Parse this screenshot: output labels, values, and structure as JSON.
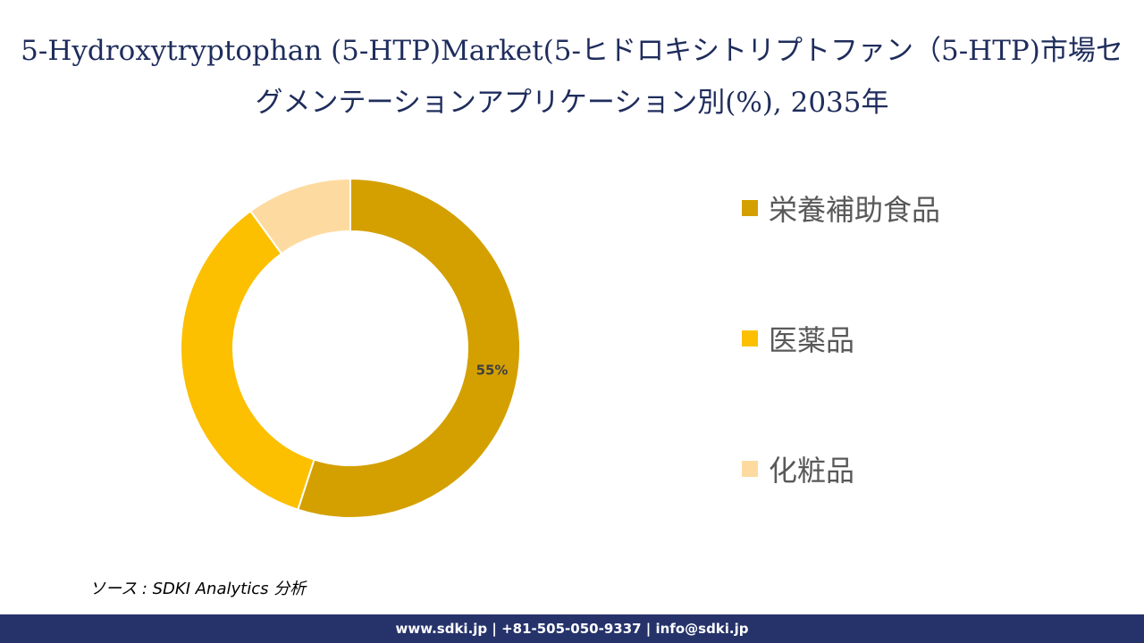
{
  "title": "5-Hydroxytryptophan (5-HTP)Market(5-ヒドロキシトリプトファン（5-HTP)市場セグメンテーションアプリケーション別(%), 2035年",
  "chart_data": {
    "type": "pie",
    "subtype": "donut",
    "title": "5-Hydroxytryptophan (5-HTP)Market(5-ヒドロキシトリプトファン（5-HTP)市場セグメンテーションアプリケーション別(%), 2035年",
    "categories": [
      "栄養補助食品",
      "医薬品",
      "化粧品"
    ],
    "values": [
      55,
      35,
      10
    ],
    "colors": [
      "#d4a000",
      "#fcc000",
      "#fddba0"
    ],
    "data_labels": [
      "55%",
      "",
      ""
    ],
    "legend_position": "right"
  },
  "source": "ソース : SDKI Analytics 分析",
  "footer": "www.sdki.jp | +81-505-050-9337 | info@sdki.jp"
}
